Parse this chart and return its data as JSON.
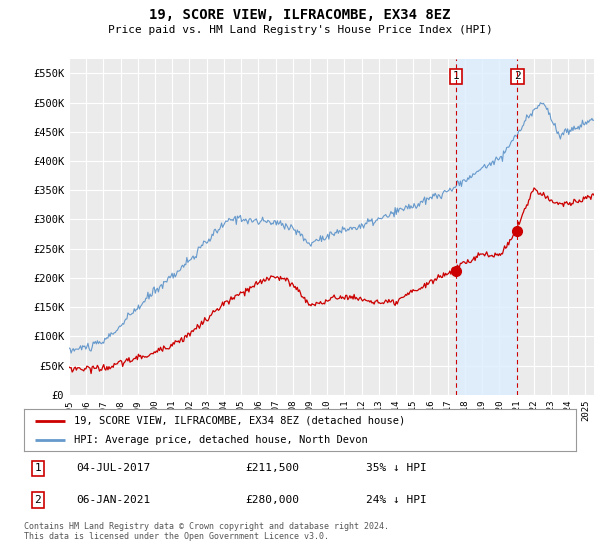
{
  "title": "19, SCORE VIEW, ILFRACOMBE, EX34 8EZ",
  "subtitle": "Price paid vs. HM Land Registry's House Price Index (HPI)",
  "ylim": [
    0,
    575000
  ],
  "yticks": [
    0,
    50000,
    100000,
    150000,
    200000,
    250000,
    300000,
    350000,
    400000,
    450000,
    500000,
    550000
  ],
  "ytick_labels": [
    "£0",
    "£50K",
    "£100K",
    "£150K",
    "£200K",
    "£250K",
    "£300K",
    "£350K",
    "£400K",
    "£450K",
    "£500K",
    "£550K"
  ],
  "background_color": "#ffffff",
  "plot_bg_color": "#ebebeb",
  "grid_color": "#ffffff",
  "hpi_color": "#6699cc",
  "price_color": "#cc0000",
  "shade_color": "#ddeeff",
  "transaction1_x": 2017.5,
  "transaction1_price": 211500,
  "transaction2_x": 2021.05,
  "transaction2_price": 280000,
  "legend1_label": "19, SCORE VIEW, ILFRACOMBE, EX34 8EZ (detached house)",
  "legend2_label": "HPI: Average price, detached house, North Devon",
  "footnote": "Contains HM Land Registry data © Crown copyright and database right 2024.\nThis data is licensed under the Open Government Licence v3.0.",
  "xmin": 1995,
  "xmax": 2025.5
}
